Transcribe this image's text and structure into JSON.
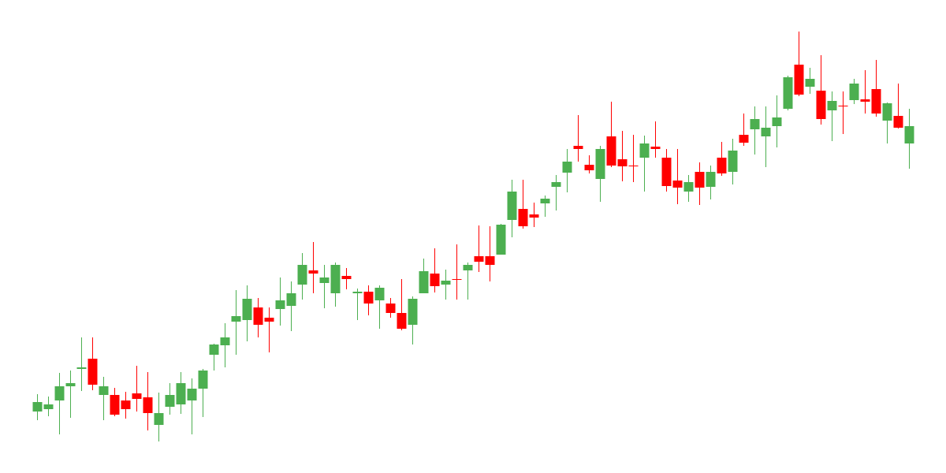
{
  "chart_data": {
    "type": "candlestick",
    "open": [
      78,
      81,
      92,
      110,
      132,
      145,
      99,
      99,
      92,
      101,
      96,
      61,
      84,
      87,
      92,
      107,
      150,
      162,
      192,
      194,
      210,
      197,
      208,
      212,
      239,
      257,
      241,
      228,
      250,
      228,
      230,
      219,
      215,
      203,
      188,
      228,
      253,
      239,
      246,
      257,
      275,
      275,
      277,
      321,
      335,
      328,
      342,
      363,
      381,
      415,
      391,
      373,
      427,
      398,
      390,
      400,
      414,
      400,
      371,
      357,
      382,
      363,
      400,
      382,
      429,
      436,
      427,
      440,
      462,
      518,
      490,
      485,
      460,
      466,
      473,
      474,
      487,
      447,
      453,
      418
    ],
    "high": [
      100,
      97,
      127,
      130,
      172,
      172,
      122,
      108,
      103,
      136,
      128,
      102,
      114,
      128,
      120,
      132,
      164,
      190,
      232,
      238,
      222,
      210,
      248,
      243,
      279,
      293,
      264,
      267,
      260,
      234,
      238,
      238,
      222,
      246,
      224,
      272,
      285,
      258,
      290,
      267,
      314,
      313,
      316,
      372,
      372,
      343,
      352,
      378,
      411,
      454,
      403,
      415,
      471,
      434,
      429,
      428,
      446,
      411,
      411,
      378,
      394,
      390,
      420,
      424,
      456,
      465,
      465,
      479,
      504,
      560,
      514,
      530,
      484,
      484,
      500,
      511,
      524,
      470,
      494,
      462
    ],
    "low": [
      67,
      72,
      49,
      70,
      104,
      105,
      67,
      72,
      69,
      78,
      54,
      40,
      74,
      75,
      49,
      71,
      130,
      134,
      150,
      167,
      172,
      153,
      187,
      180,
      220,
      228,
      209,
      211,
      233,
      194,
      200,
      183,
      197,
      181,
      163,
      228,
      229,
      220,
      220,
      220,
      255,
      243,
      277,
      299,
      310,
      312,
      325,
      333,
      356,
      395,
      380,
      344,
      388,
      370,
      369,
      357,
      400,
      357,
      341,
      344,
      340,
      347,
      377,
      366,
      415,
      404,
      388,
      413,
      460,
      478,
      481,
      442,
      421,
      430,
      468,
      456,
      452,
      418,
      437,
      386
    ],
    "close": [
      90,
      87,
      110,
      114,
      134,
      112,
      110,
      74,
      81,
      94,
      76,
      76,
      99,
      114,
      107,
      130,
      163,
      172,
      199,
      221,
      188,
      192,
      219,
      228,
      264,
      253,
      248,
      264,
      246,
      230,
      215,
      235,
      203,
      183,
      221,
      256,
      237,
      244,
      245,
      264,
      268,
      264,
      315,
      357,
      313,
      324,
      348,
      369,
      395,
      411,
      384,
      411,
      390,
      389,
      389,
      418,
      411,
      364,
      362,
      369,
      362,
      382,
      380,
      409,
      419,
      449,
      438,
      451,
      502,
      480,
      500,
      449,
      472,
      465,
      494,
      471,
      456,
      469,
      438,
      440
    ],
    "up_color": "#4caf50",
    "down_color": "#ff0000",
    "ylim": [
      0,
      600
    ]
  }
}
